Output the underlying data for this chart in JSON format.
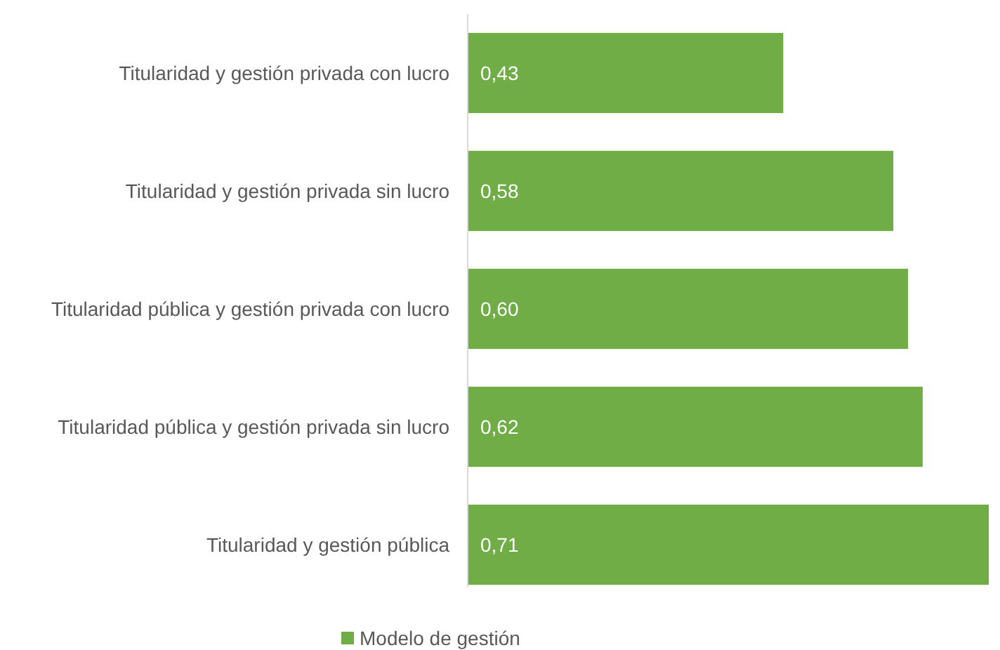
{
  "chart_data": {
    "type": "bar",
    "orientation": "horizontal",
    "categories": [
      "Titularidad y gestión privada con lucro",
      "Titularidad y gestión privada sin lucro",
      "Titularidad pública y gestión privada con lucro",
      "Titularidad pública y gestión privada sin lucro",
      "Titularidad y gestión pública"
    ],
    "series": [
      {
        "name": "Modelo de gestión",
        "color": "#70ad47",
        "values": [
          0.43,
          0.58,
          0.6,
          0.62,
          0.71
        ],
        "value_labels": [
          "0,43",
          "0,58",
          "0,60",
          "0,62",
          "0,71"
        ]
      }
    ],
    "legend": "bottom"
  }
}
